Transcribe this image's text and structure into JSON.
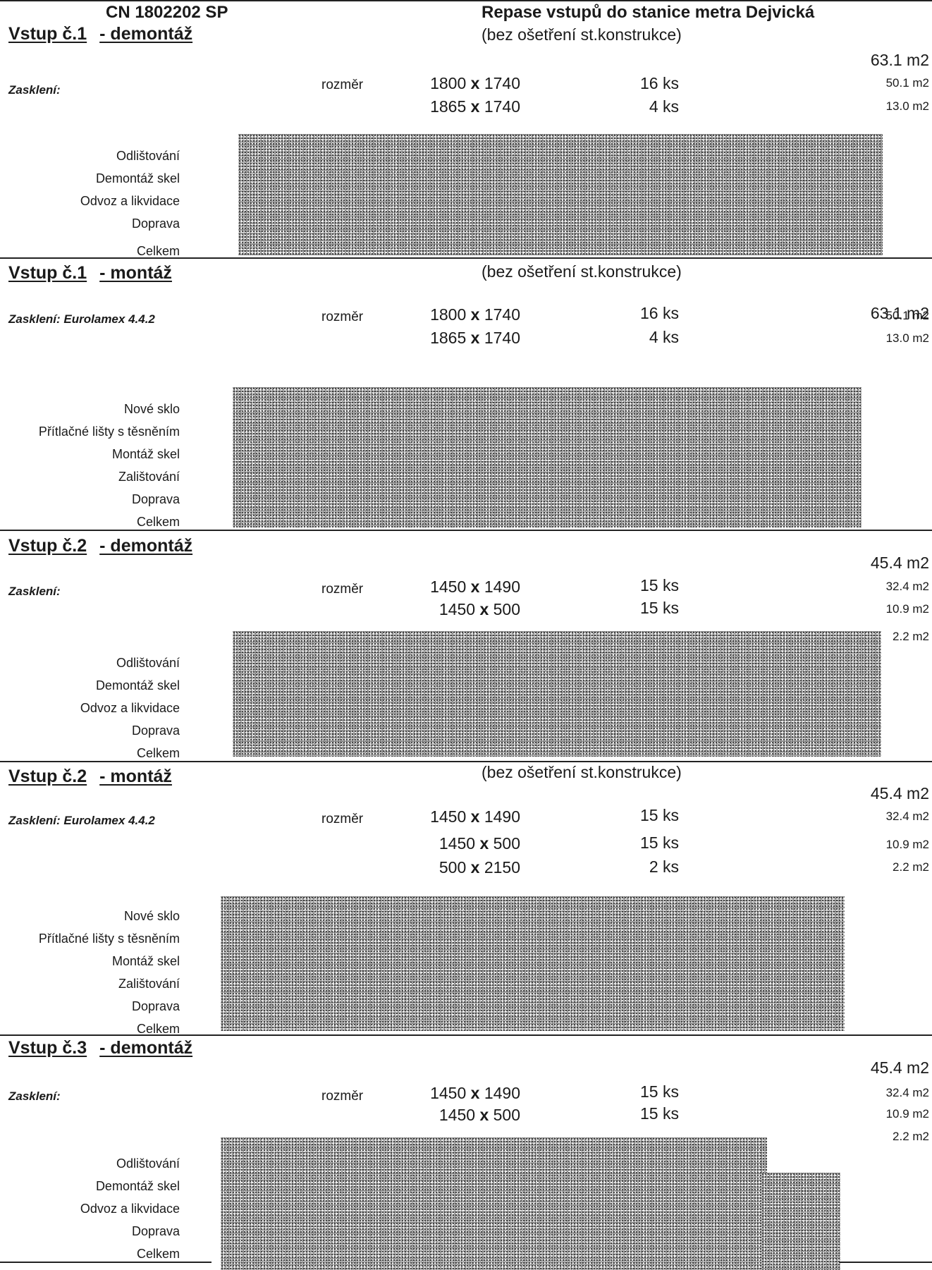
{
  "header": {
    "code": "CN 1802202 SP",
    "title": "Repase vstupů do stanice metra Dejvická"
  },
  "note": "(bez ošetření st.konstrukce)",
  "rozmer": "rozměr",
  "sections": [
    {
      "entrance": "Vstup č.1",
      "phase": "- demontáž",
      "note": "(bez ošetření st.konstrukce)",
      "total": "63.1  m2",
      "label": "Zasklení:",
      "rows": [
        {
          "w": "1800",
          "x": "x",
          "h": "1740",
          "qty": "16 ks",
          "area": "50.1  m2"
        },
        {
          "w": "1865",
          "x": "x",
          "h": "1740",
          "qty": "4 ks",
          "area": "13.0  m2"
        }
      ],
      "items": [
        "Odlištování",
        "Demontáž skel",
        "Odvoz a likvidace",
        "Doprava",
        "Celkem"
      ]
    },
    {
      "entrance": "Vstup č.1",
      "phase": "- montáž",
      "note": "(bez ošetření st.konstrukce)",
      "total": "63.1  m2",
      "label": "Zasklení: Eurolamex 4.4.2",
      "rows": [
        {
          "w": "1800",
          "x": "x",
          "h": "1740",
          "qty": "16 ks",
          "area": "50.1  m2"
        },
        {
          "w": "1865",
          "x": "x",
          "h": "1740",
          "qty": "4 ks",
          "area": "13.0  m2"
        }
      ],
      "items": [
        "Nové sklo",
        "Přítlačné lišty s těsněním",
        "Montáž skel",
        "Zalištování",
        "Doprava",
        "Celkem"
      ]
    },
    {
      "entrance": "Vstup č.2",
      "phase": "- demontáž",
      "total": "45.4  m2",
      "label": "Zasklení:",
      "rows": [
        {
          "w": "1450",
          "x": "x",
          "h": "1490",
          "qty": "15 ks",
          "area": "32.4  m2"
        },
        {
          "w": "1450",
          "x": "x",
          "h": "500",
          "qty": "15 ks",
          "area": "10.9  m2"
        },
        {
          "area": "2.2  m2"
        }
      ],
      "items": [
        "Odlištování",
        "Demontáž skel",
        "Odvoz a likvidace",
        "Doprava",
        "Celkem"
      ]
    },
    {
      "entrance": "Vstup č.2",
      "phase": "- montáž",
      "note": "(bez ošetření st.konstrukce)",
      "total": "45.4  m2",
      "label": "Zasklení: Eurolamex 4.4.2",
      "rows": [
        {
          "w": "1450",
          "x": "x",
          "h": "1490",
          "qty": "15 ks",
          "area": "32.4  m2"
        },
        {
          "w": "1450",
          "x": "x",
          "h": "500",
          "qty": "15 ks",
          "area": "10.9  m2"
        },
        {
          "w": "500",
          "x": "x",
          "h": "2150",
          "qty": "2 ks",
          "area": "2.2  m2"
        }
      ],
      "items": [
        "Nové sklo",
        "Přítlačné lišty s těsněním",
        "Montáž skel",
        "Zalištování",
        "Doprava",
        "Celkem"
      ]
    },
    {
      "entrance": "Vstup č.3",
      "phase": "- demontáž",
      "total": "45.4  m2",
      "label": "Zasklení:",
      "rows": [
        {
          "w": "1450",
          "x": "x",
          "h": "1490",
          "qty": "15 ks",
          "area": "32.4  m2"
        },
        {
          "w": "1450",
          "x": "x",
          "h": "500",
          "qty": "15 ks",
          "area": "10.9  m2"
        },
        {
          "area": "2.2  m2"
        }
      ],
      "items": [
        "Odlištování",
        "Demontáž skel",
        "Odvoz a likvidace",
        "Doprava",
        "Celkem"
      ]
    }
  ]
}
